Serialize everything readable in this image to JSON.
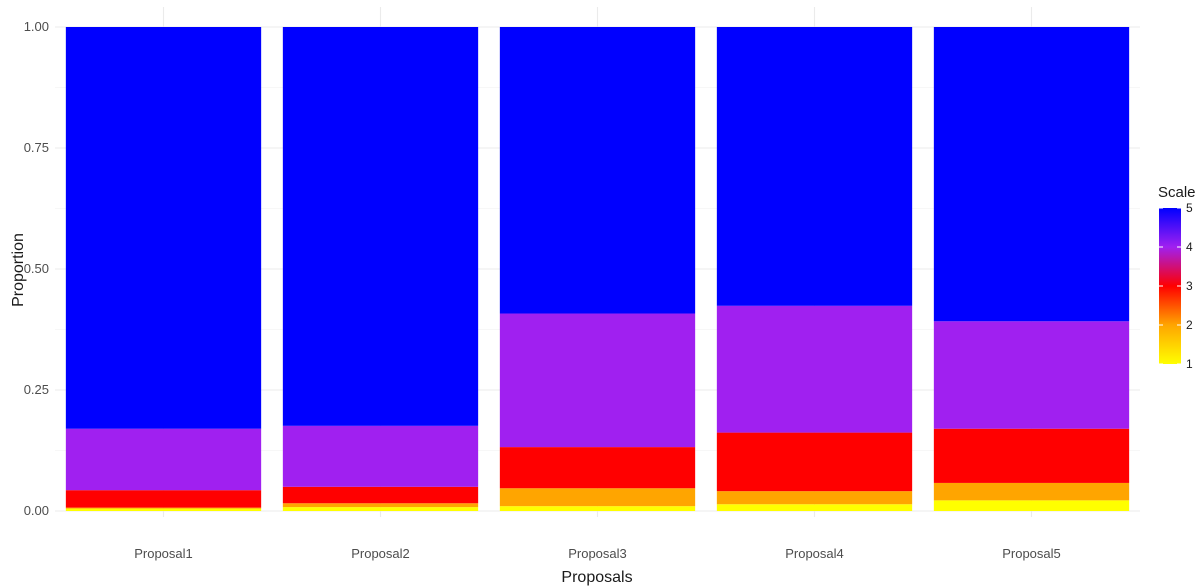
{
  "chart_data": {
    "type": "bar",
    "stacked": true,
    "title": "",
    "xlabel": "Proposals",
    "ylabel": "Proportion",
    "ylim": [
      0,
      1
    ],
    "yticks": [
      "0.00",
      "0.25",
      "0.50",
      "0.75",
      "1.00"
    ],
    "ytick_values": [
      0,
      0.25,
      0.5,
      0.75,
      1.0
    ],
    "grid": true,
    "categories": [
      "Proposal1",
      "Proposal2",
      "Proposal3",
      "Proposal4",
      "Proposal5"
    ],
    "series": [
      {
        "name": "1",
        "color": "#ffff00",
        "values": [
          0.005,
          0.008,
          0.01,
          0.014,
          0.022
        ]
      },
      {
        "name": "2",
        "color": "#ffa500",
        "values": [
          0.002,
          0.008,
          0.037,
          0.027,
          0.036
        ]
      },
      {
        "name": "3",
        "color": "#ff0000",
        "values": [
          0.036,
          0.034,
          0.085,
          0.121,
          0.112
        ]
      },
      {
        "name": "4",
        "color": "#a020f0",
        "values": [
          0.127,
          0.126,
          0.276,
          0.262,
          0.222
        ]
      },
      {
        "name": "5",
        "color": "#0000ff",
        "values": [
          0.83,
          0.824,
          0.592,
          0.576,
          0.608
        ]
      }
    ],
    "legend": {
      "title": "Scale",
      "position": "right",
      "ticks": [
        "1",
        "2",
        "3",
        "4",
        "5"
      ],
      "gradient": [
        "#ffff00",
        "#ffa500",
        "#ff0000",
        "#a020f0",
        "#0000ff"
      ]
    }
  }
}
